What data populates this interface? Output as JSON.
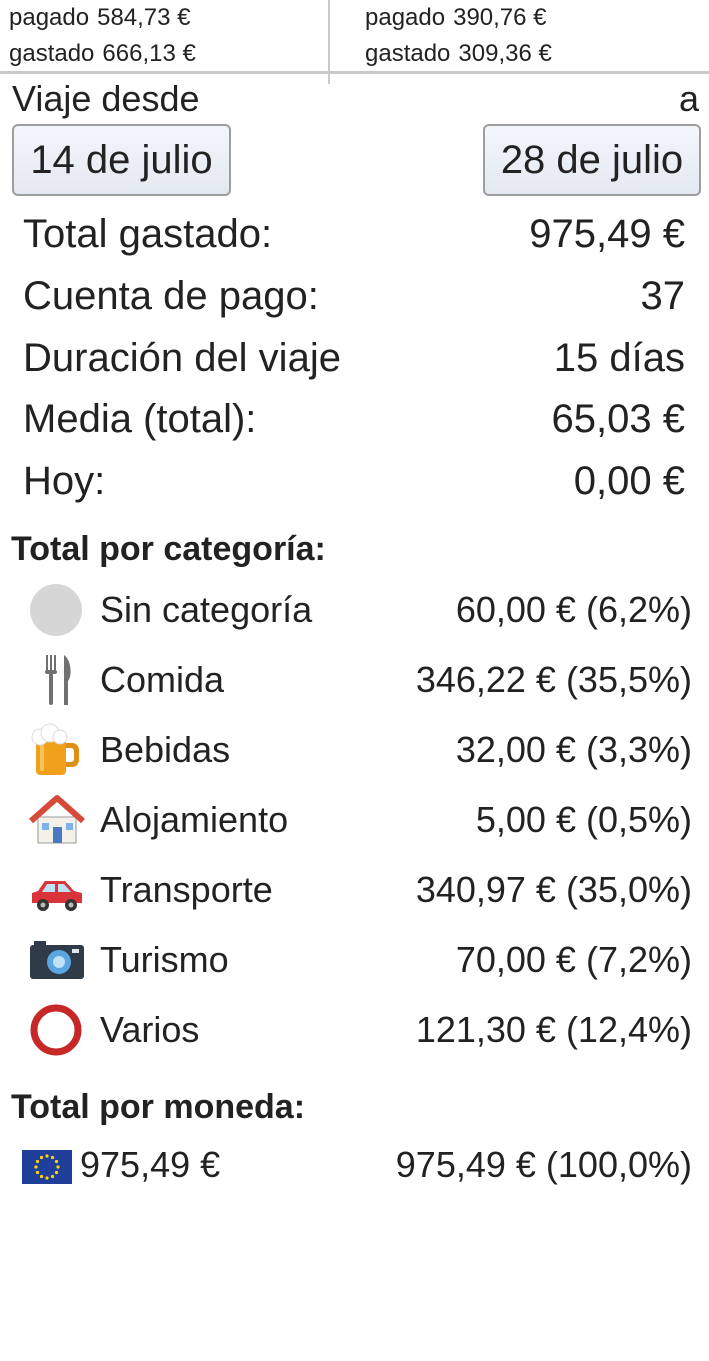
{
  "participants": [
    {
      "paid_label": "pagado",
      "paid": "584,73 €",
      "spent_label": "gastado",
      "spent": "666,13 €"
    },
    {
      "paid_label": "pagado",
      "paid": "390,76 €",
      "spent_label": "gastado",
      "spent": "309,36 €"
    }
  ],
  "trip": {
    "from_label": "Viaje desde",
    "to_label": "a",
    "start_date": "14 de julio",
    "end_date": "28 de julio"
  },
  "stats": [
    {
      "label": "Total gastado:",
      "value": "975,49 €"
    },
    {
      "label": "Cuenta de pago:",
      "value": "37"
    },
    {
      "label": "Duración del viaje",
      "value": "15 días"
    },
    {
      "label": "Media (total):",
      "value": "65,03 €"
    },
    {
      "label": "Hoy:",
      "value": "0,00 €"
    }
  ],
  "categories_title": "Total por categoría:",
  "categories": [
    {
      "icon": "grey-circle-icon",
      "name": "Sin categoría",
      "value": "60,00 € (6,2%)"
    },
    {
      "icon": "fork-knife-icon",
      "name": "Comida",
      "value": "346,22 € (35,5%)"
    },
    {
      "icon": "beer-mug-icon",
      "name": "Bebidas",
      "value": "32,00 € (3,3%)"
    },
    {
      "icon": "house-icon",
      "name": "Alojamiento",
      "value": "5,00 € (0,5%)"
    },
    {
      "icon": "car-icon",
      "name": "Transporte",
      "value": "340,97 € (35,0%)"
    },
    {
      "icon": "camera-icon",
      "name": "Turismo",
      "value": "70,00 € (7,2%)"
    },
    {
      "icon": "red-ring-icon",
      "name": "Varios",
      "value": "121,30 € (12,4%)"
    }
  ],
  "currency_title": "Total por moneda:",
  "currencies": [
    {
      "icon": "eu-flag-icon",
      "name": "975,49 €",
      "value": "975,49 € (100,0%)"
    }
  ],
  "colors": {
    "accent_red": "#c62828",
    "divider": "#c9c9c9",
    "eu_blue": "#1f3f9a"
  }
}
